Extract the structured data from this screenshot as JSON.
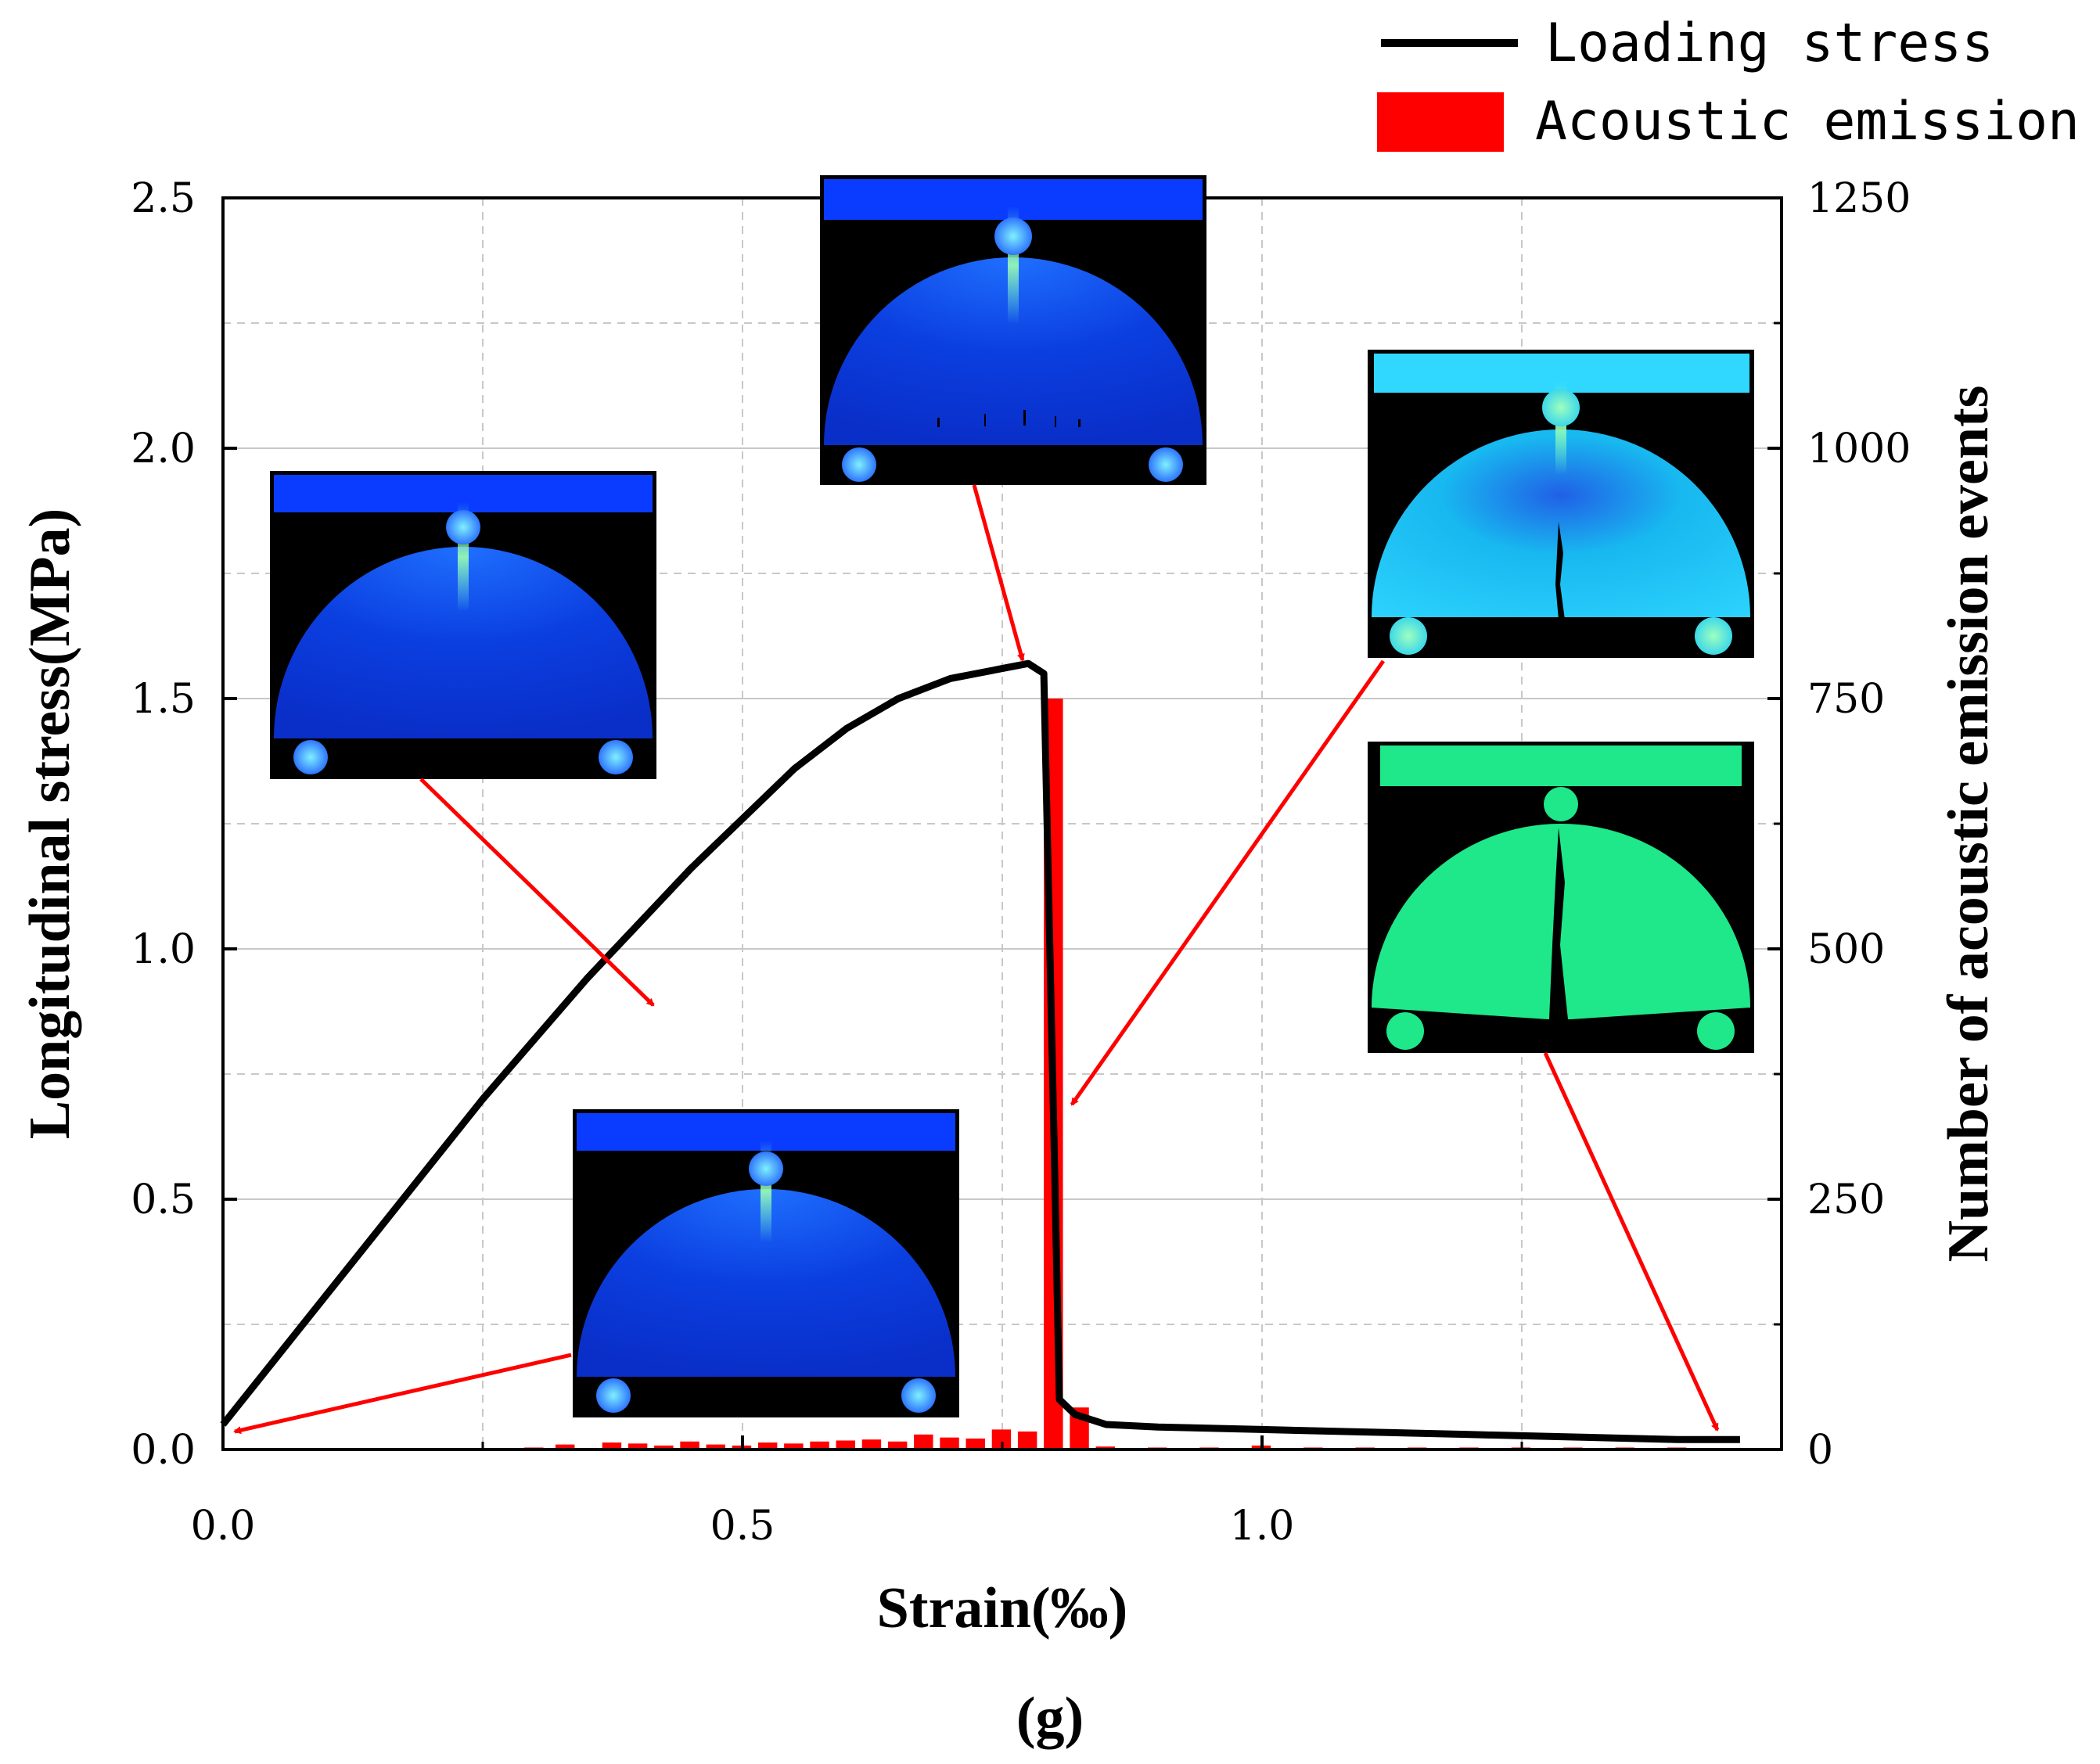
{
  "chart_data": {
    "type": "bar+line",
    "title": "",
    "caption": "(g)",
    "xlabel": "Strain(‰)",
    "ylabel_left": "Longitudinal stress(MPa)",
    "ylabel_right": "Number of acoustic emission events",
    "xlim": [
      0,
      1.5
    ],
    "ylim_left": [
      0,
      2.5
    ],
    "ylim_right": [
      0,
      1250
    ],
    "x_ticks": [
      "0.0",
      "0.5",
      "1.0"
    ],
    "x_tick_values": [
      0,
      0.5,
      1.0
    ],
    "y_left_ticks": [
      "0.0",
      "0.5",
      "1.0",
      "1.5",
      "2.0",
      "2.5"
    ],
    "y_left_tick_values": [
      0,
      0.5,
      1.0,
      1.5,
      2.0,
      2.5
    ],
    "y_right_ticks": [
      "0",
      "250",
      "500",
      "750",
      "1000",
      "1250"
    ],
    "y_right_tick_values": [
      0,
      250,
      500,
      750,
      1000,
      1250
    ],
    "grid": true,
    "legend_position": "top-right",
    "legend": [
      {
        "label": "Loading stress",
        "type": "line",
        "color": "#000000"
      },
      {
        "label": "Acoustic emission",
        "type": "bar",
        "color": "#ff0000"
      }
    ],
    "series": [
      {
        "name": "Loading stress",
        "type": "line",
        "axis": "left",
        "color": "#000000",
        "x": [
          0.0,
          0.05,
          0.1,
          0.15,
          0.2,
          0.25,
          0.3,
          0.35,
          0.4,
          0.45,
          0.5,
          0.55,
          0.6,
          0.65,
          0.7,
          0.75,
          0.775,
          0.79,
          0.8,
          0.805,
          0.82,
          0.85,
          0.9,
          1.0,
          1.1,
          1.2,
          1.3,
          1.4,
          1.46
        ],
        "y": [
          0.05,
          0.18,
          0.31,
          0.44,
          0.57,
          0.7,
          0.82,
          0.94,
          1.05,
          1.16,
          1.26,
          1.36,
          1.44,
          1.5,
          1.54,
          1.56,
          1.57,
          1.55,
          0.6,
          0.1,
          0.07,
          0.05,
          0.045,
          0.04,
          0.035,
          0.03,
          0.025,
          0.02,
          0.02
        ]
      },
      {
        "name": "Acoustic emission",
        "type": "bar",
        "axis": "right",
        "color": "#ff0000",
        "bar_width": 0.02,
        "x": [
          0.15,
          0.3,
          0.33,
          0.375,
          0.4,
          0.425,
          0.45,
          0.475,
          0.5,
          0.525,
          0.55,
          0.575,
          0.6,
          0.625,
          0.65,
          0.675,
          0.7,
          0.725,
          0.75,
          0.775,
          0.8,
          0.825,
          0.85,
          0.9,
          0.95,
          1.0,
          1.05,
          1.1,
          1.15,
          1.2,
          1.25,
          1.3,
          1.35,
          1.4
        ],
        "values": [
          1,
          2,
          5,
          7,
          6,
          4,
          8,
          5,
          4,
          7,
          6,
          8,
          9,
          10,
          8,
          15,
          12,
          11,
          20,
          18,
          750,
          42,
          3,
          2,
          2,
          4,
          2,
          2,
          2,
          2,
          2,
          2,
          2,
          2
        ]
      }
    ],
    "annotations": [
      {
        "type": "inset",
        "description": "simulation snapshot, initial loading (blue stress field)",
        "points_to_x": 0.0,
        "points_to_y": 0.04
      },
      {
        "type": "inset",
        "description": "simulation snapshot, linear loading stage",
        "points_to_x": 0.41,
        "points_to_y": 0.88
      },
      {
        "type": "inset",
        "description": "simulation snapshot, peak stress",
        "points_to_x": 0.77,
        "points_to_y": 1.56
      },
      {
        "type": "inset",
        "description": "simulation snapshot, crack initiation at stress drop",
        "points_to_x": 0.8,
        "points_to_y": 0.68
      },
      {
        "type": "inset",
        "description": "simulation snapshot, full fracture (green field)",
        "points_to_x": 1.43,
        "points_to_y": 0.05
      }
    ]
  },
  "colors": {
    "line": "#000000",
    "bars": "#ff0000",
    "arrows": "#ff0000",
    "grid": "#c8c8c8",
    "inset_blue": "#0a3cff",
    "inset_cyan": "#1ad2ff",
    "inset_green": "#1ee88a"
  }
}
